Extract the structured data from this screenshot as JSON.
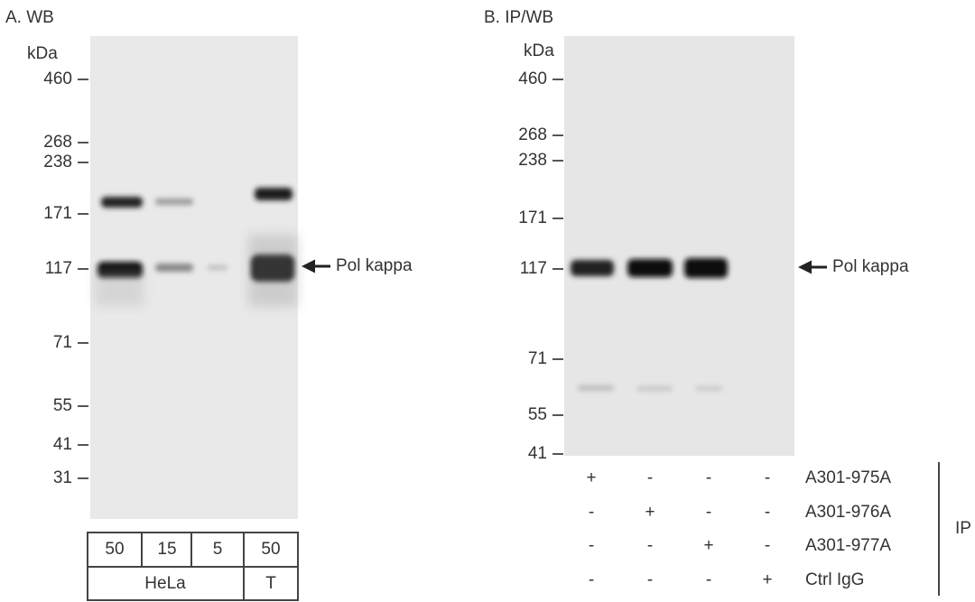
{
  "panels": [
    {
      "title": "A. WB",
      "unit": "kDa",
      "markers": [
        "460",
        "268",
        "238",
        "171",
        "117",
        "71",
        "55",
        "41",
        "31"
      ],
      "annotation": "Pol kappa",
      "lanes": [
        "50",
        "15",
        "5",
        "50"
      ],
      "groups": [
        "HeLa",
        "T"
      ]
    },
    {
      "title": "B. IP/WB",
      "unit": "kDa",
      "markers": [
        "460",
        "268",
        "238",
        "171",
        "117",
        "71",
        "55",
        "41"
      ],
      "annotation": "Pol kappa",
      "rows": [
        {
          "label": "A301-975A",
          "signs": [
            "+",
            "-",
            "-",
            "-"
          ]
        },
        {
          "label": "A301-976A",
          "signs": [
            "-",
            "+",
            "-",
            "-"
          ]
        },
        {
          "label": "A301-977A",
          "signs": [
            "-",
            "-",
            "+",
            "-"
          ]
        },
        {
          "label": "Ctrl IgG",
          "signs": [
            "-",
            "-",
            "-",
            "+"
          ]
        }
      ],
      "group": "IP"
    }
  ]
}
